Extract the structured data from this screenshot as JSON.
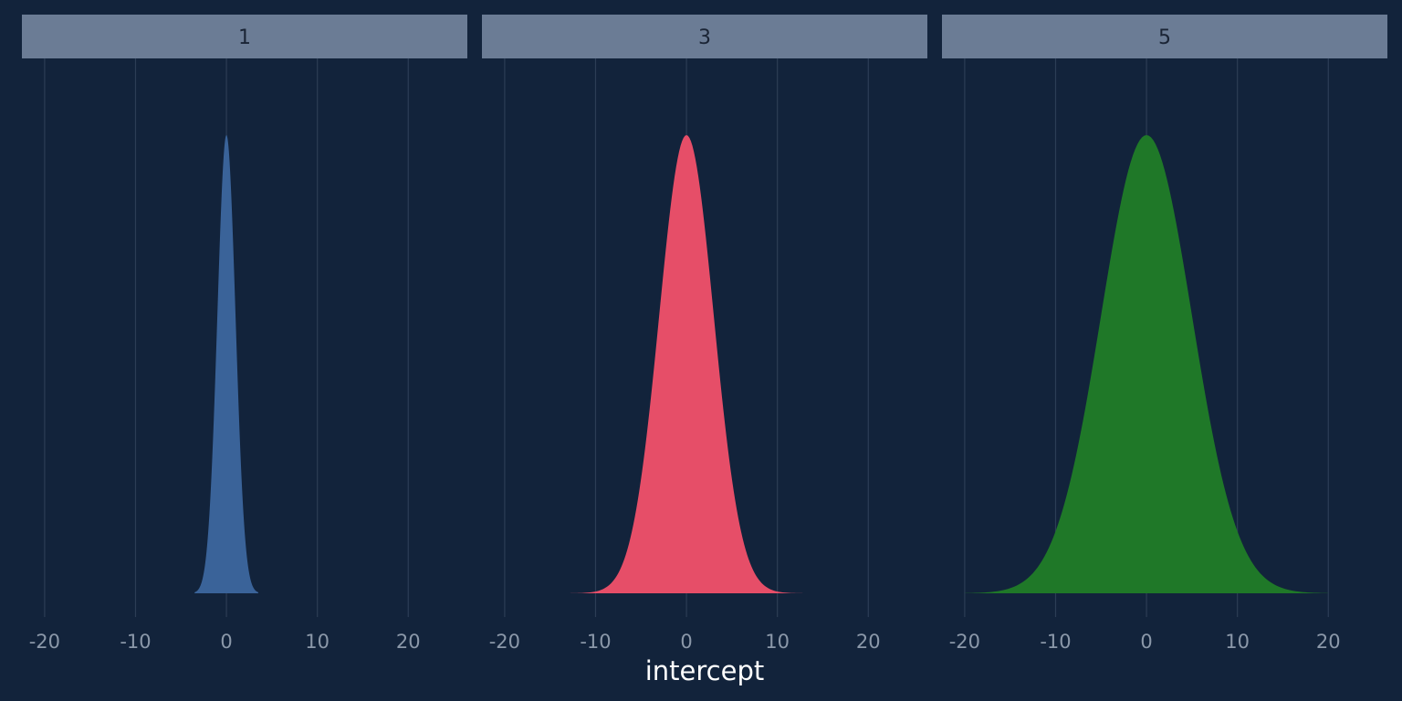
{
  "chart_data": {
    "type": "area",
    "xlabel": "intercept",
    "ylabel": "",
    "title": "",
    "xlim": [
      -22.5,
      26.5
    ],
    "xticks": [
      -20,
      -10,
      0,
      10,
      20
    ],
    "xtick_labels": [
      "-20",
      "-10",
      "0",
      "10",
      "20"
    ],
    "grid": "vertical major",
    "legend": "none",
    "colors": {
      "background": "#12233b",
      "strip": "#6b7c95",
      "grid": "#2c3d55"
    },
    "panels": [
      {
        "label": "1",
        "distribution": "normal",
        "mean": 0,
        "sd": 1,
        "x_range": [
          -3.5,
          3.5
        ],
        "color": "#3a6399"
      },
      {
        "label": "3",
        "distribution": "normal",
        "mean": 0,
        "sd": 3,
        "x_range": [
          -13,
          13
        ],
        "color": "#e64e68"
      },
      {
        "label": "5",
        "distribution": "normal",
        "mean": 0,
        "sd": 5,
        "x_range": [
          -20,
          20
        ],
        "color": "#1f7828"
      }
    ]
  }
}
